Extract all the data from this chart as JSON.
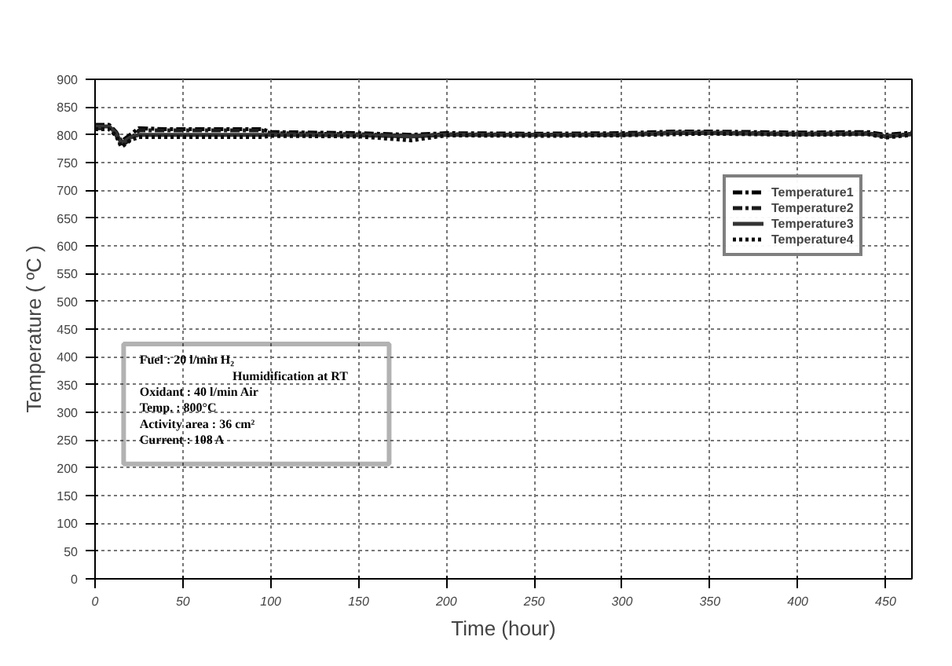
{
  "chart_data": {
    "type": "line",
    "xlabel": "Time (hour)",
    "ylabel": "Temperature ( ºC )",
    "xlim": [
      0,
      465
    ],
    "ylim": [
      0,
      900
    ],
    "xticks": [
      0,
      50,
      100,
      150,
      200,
      250,
      300,
      350,
      400,
      450
    ],
    "yticks": [
      0,
      50,
      100,
      150,
      200,
      250,
      300,
      350,
      400,
      450,
      500,
      550,
      600,
      650,
      700,
      750,
      800,
      850,
      900
    ],
    "grid": true,
    "legend": "top right",
    "marker": "none",
    "annotations": [
      "Fuel : 20 l/min H₂",
      "Humidification at RT",
      "Oxidant : 40 l/min Air",
      "Temp. : 800°C",
      "Activity area : 36 cm²",
      "Current : 108 A"
    ],
    "series": [
      {
        "name": "Temperature1",
        "color": "#000000",
        "line_style": "dashed",
        "x": [
          0,
          8,
          12,
          15,
          20,
          25,
          40,
          60,
          95,
          100,
          150,
          180,
          200,
          250,
          300,
          330,
          350,
          400,
          440,
          450,
          465
        ],
        "values": [
          818,
          818,
          805,
          788,
          800,
          812,
          810,
          810,
          810,
          805,
          803,
          800,
          803,
          802,
          803,
          806,
          806,
          804,
          805,
          800,
          804
        ]
      },
      {
        "name": "Temperature2",
        "color": "#1a1a1a",
        "line_style": "dashed",
        "x": [
          0,
          8,
          12,
          15,
          20,
          25,
          40,
          60,
          95,
          100,
          150,
          180,
          200,
          250,
          300,
          330,
          350,
          400,
          440,
          450,
          465
        ],
        "values": [
          812,
          812,
          800,
          780,
          792,
          808,
          808,
          808,
          808,
          803,
          801,
          798,
          801,
          800,
          801,
          804,
          804,
          802,
          803,
          797,
          802
        ]
      },
      {
        "name": "Temperature3",
        "color": "#333333",
        "line_style": "solid",
        "x": [
          0,
          8,
          12,
          15,
          20,
          25,
          40,
          60,
          95,
          100,
          150,
          180,
          200,
          250,
          300,
          330,
          350,
          400,
          440,
          450,
          465
        ],
        "values": [
          815,
          815,
          803,
          785,
          795,
          800,
          800,
          800,
          800,
          800,
          799,
          797,
          800,
          800,
          800,
          803,
          803,
          801,
          802,
          797,
          801
        ]
      },
      {
        "name": "Temperature4",
        "color": "#0d0d0d",
        "line_style": "dotted",
        "x": [
          0,
          8,
          12,
          15,
          20,
          25,
          40,
          60,
          95,
          100,
          150,
          180,
          200,
          250,
          300,
          330,
          350,
          400,
          440,
          450,
          465
        ],
        "values": [
          810,
          810,
          798,
          778,
          790,
          796,
          796,
          796,
          796,
          798,
          797,
          790,
          799,
          798,
          799,
          801,
          802,
          800,
          801,
          795,
          800
        ]
      }
    ]
  }
}
